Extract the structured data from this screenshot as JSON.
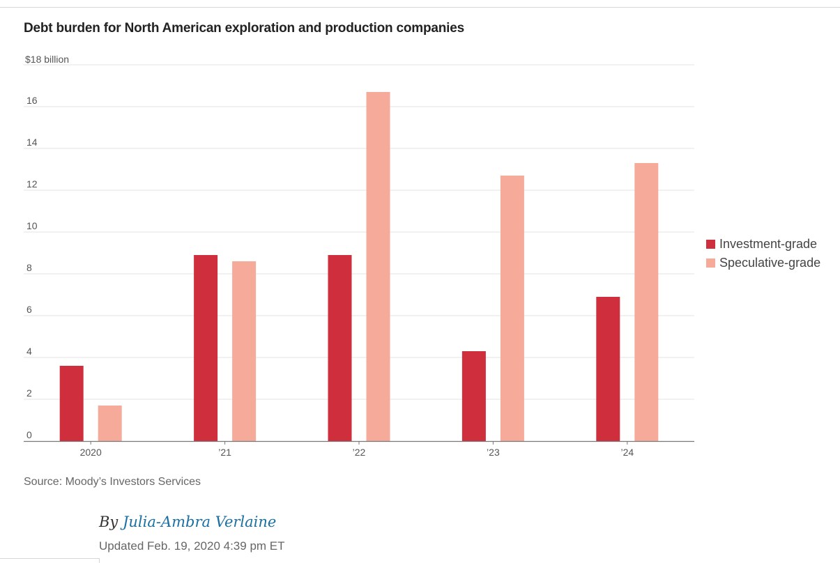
{
  "chart_data": {
    "type": "bar",
    "title": "Debt burden for North American exploration and production companies",
    "ylabel": "$18 billion",
    "xlabel": "",
    "categories": [
      "2020",
      "’21",
      "’22",
      "’23",
      "’24"
    ],
    "series": [
      {
        "name": "Investment-grade",
        "color": "#cf2f3d",
        "values": [
          3.6,
          8.9,
          8.9,
          4.3,
          6.9
        ]
      },
      {
        "name": "Speculative-grade",
        "color": "#f5aa9a",
        "values": [
          1.7,
          8.6,
          16.7,
          12.7,
          13.3
        ]
      }
    ],
    "ylim": [
      0,
      18
    ],
    "yticks": [
      0,
      2,
      4,
      6,
      8,
      10,
      12,
      14,
      16
    ],
    "top_tick_label": "$18 billion",
    "grid": true,
    "legend_position": "right"
  },
  "source": "Source: Moody’s Investors Services",
  "byline": {
    "prefix": "By",
    "author": "Julia-Ambra Verlaine"
  },
  "updated": "Updated Feb. 19, 2020 4:39 pm ET"
}
